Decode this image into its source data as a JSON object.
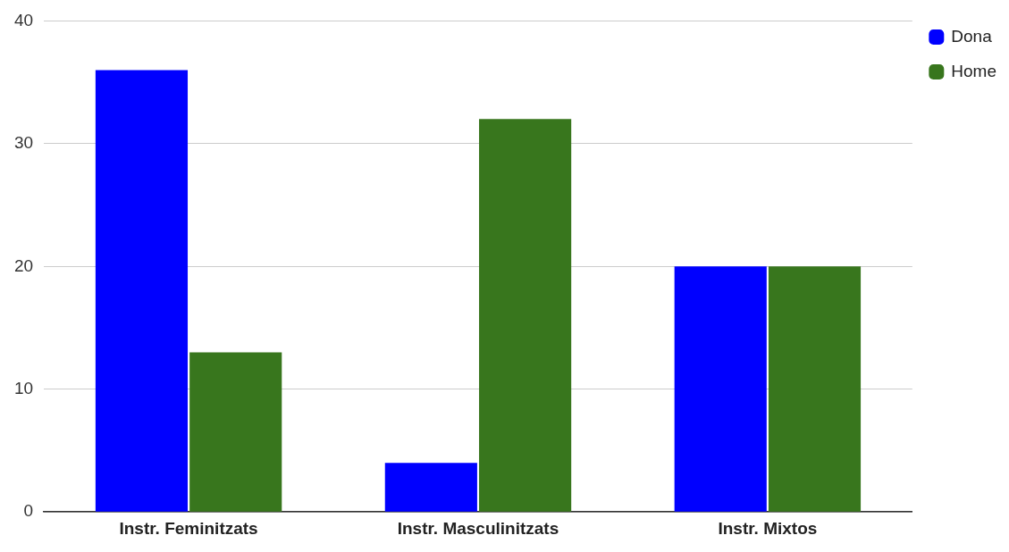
{
  "chart_data": {
    "type": "bar",
    "categories": [
      "Instr. Feminitzats",
      "Instr. Masculinitzats",
      "Instr. Mixtos"
    ],
    "series": [
      {
        "name": "Dona",
        "color": "#0000ff",
        "values": [
          36,
          4,
          20
        ]
      },
      {
        "name": "Home",
        "color": "#38761d",
        "values": [
          13,
          32,
          20
        ]
      }
    ],
    "ylim": [
      0,
      40
    ],
    "yticks": [
      0,
      10,
      20,
      30,
      40
    ],
    "grid": "y",
    "legend": "top right"
  }
}
